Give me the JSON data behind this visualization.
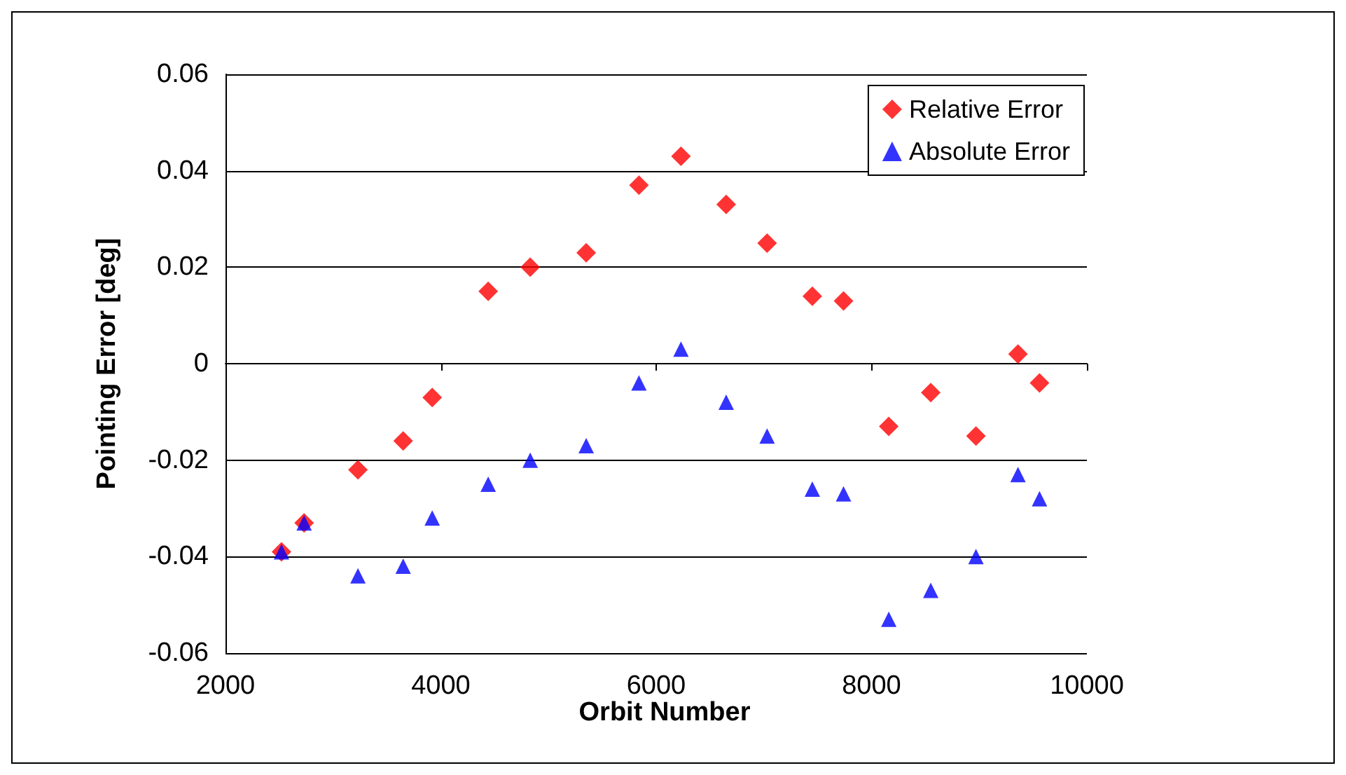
{
  "chart_data": {
    "type": "scatter",
    "xlabel": "Orbit Number",
    "ylabel": "Pointing Error [deg]",
    "xlim": [
      2000,
      10000
    ],
    "xticks": [
      2000,
      4000,
      6000,
      8000,
      10000
    ],
    "ylim": [
      -0.06,
      0.06
    ],
    "yticks": [
      -0.06,
      -0.04,
      -0.02,
      0,
      0.02,
      0.04,
      0.06
    ],
    "grid": "y",
    "legend": "top right",
    "x": [
      2520,
      2730,
      3230,
      3650,
      3920,
      4440,
      4830,
      5350,
      5840,
      6230,
      6650,
      7030,
      7450,
      7740,
      8160,
      8550,
      8970,
      9360,
      9560
    ],
    "series": [
      {
        "name": "Relative Error",
        "color": "#ff0000",
        "marker": "diamond",
        "values": [
          -0.039,
          -0.033,
          -0.022,
          -0.016,
          -0.007,
          0.015,
          0.02,
          0.023,
          0.037,
          0.043,
          0.033,
          0.025,
          0.014,
          0.013,
          -0.013,
          -0.006,
          -0.015,
          0.002,
          -0.004
        ]
      },
      {
        "name": "Absolute Error",
        "color": "#0000ff",
        "marker": "triangle",
        "values": [
          -0.039,
          -0.033,
          -0.044,
          -0.042,
          -0.032,
          -0.025,
          -0.02,
          -0.017,
          -0.004,
          0.003,
          -0.008,
          -0.015,
          -0.026,
          -0.027,
          -0.053,
          -0.047,
          -0.04,
          -0.023,
          -0.028
        ]
      }
    ]
  }
}
